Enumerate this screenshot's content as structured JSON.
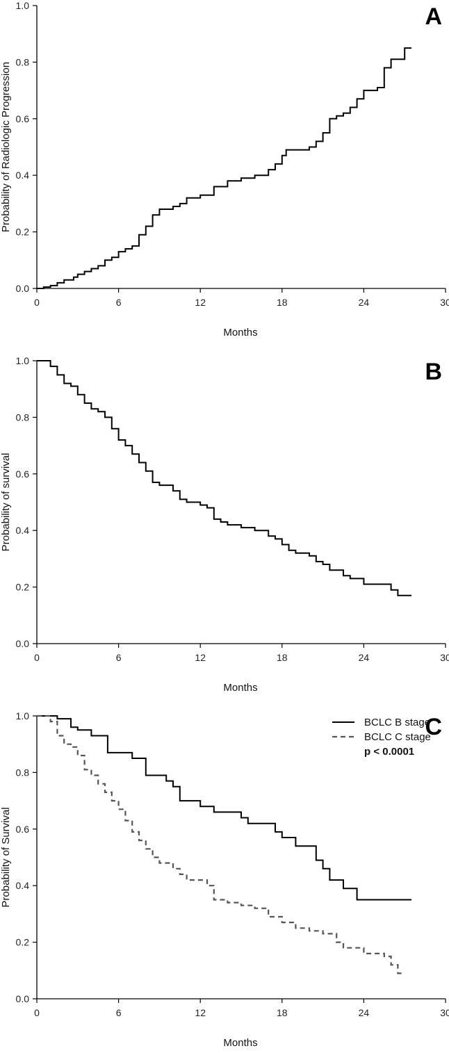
{
  "chart_data": [
    {
      "panel_label": "A",
      "type": "line",
      "step": true,
      "xlabel": "Months",
      "ylabel": "Probability of Radiologic Progression",
      "xlim": [
        0,
        30
      ],
      "ylim": [
        0,
        1
      ],
      "x_ticks": [
        "0",
        "6",
        "12",
        "18",
        "24",
        "30"
      ],
      "y_ticks": [
        "0.0",
        "0.2",
        "0.4",
        "0.6",
        "0.8",
        "1.0"
      ],
      "grid": false,
      "series": [
        {
          "color": "#000000",
          "dashed": false,
          "points": [
            [
              0,
              0
            ],
            [
              0.5,
              0.005
            ],
            [
              1.0,
              0.01
            ],
            [
              1.5,
              0.02
            ],
            [
              2.0,
              0.03
            ],
            [
              2.7,
              0.04
            ],
            [
              3.0,
              0.05
            ],
            [
              3.5,
              0.06
            ],
            [
              4.0,
              0.07
            ],
            [
              4.5,
              0.08
            ],
            [
              5.0,
              0.1
            ],
            [
              5.5,
              0.11
            ],
            [
              6.0,
              0.13
            ],
            [
              6.5,
              0.14
            ],
            [
              7.0,
              0.15
            ],
            [
              7.5,
              0.19
            ],
            [
              8.0,
              0.22
            ],
            [
              8.5,
              0.26
            ],
            [
              9.0,
              0.28
            ],
            [
              10.0,
              0.29
            ],
            [
              10.5,
              0.3
            ],
            [
              11.0,
              0.32
            ],
            [
              12.0,
              0.33
            ],
            [
              13.0,
              0.36
            ],
            [
              14.0,
              0.38
            ],
            [
              15.0,
              0.39
            ],
            [
              16.0,
              0.4
            ],
            [
              17.0,
              0.42
            ],
            [
              17.5,
              0.44
            ],
            [
              18.0,
              0.47
            ],
            [
              18.3,
              0.49
            ],
            [
              20.0,
              0.5
            ],
            [
              20.5,
              0.52
            ],
            [
              21.0,
              0.55
            ],
            [
              21.5,
              0.6
            ],
            [
              22.0,
              0.61
            ],
            [
              22.5,
              0.62
            ],
            [
              23.0,
              0.64
            ],
            [
              23.5,
              0.67
            ],
            [
              24.0,
              0.7
            ],
            [
              25.0,
              0.71
            ],
            [
              25.5,
              0.78
            ],
            [
              26.0,
              0.81
            ],
            [
              27.0,
              0.85
            ],
            [
              27.5,
              0.85
            ]
          ]
        }
      ]
    },
    {
      "panel_label": "B",
      "type": "line",
      "step": true,
      "xlabel": "Months",
      "ylabel": "Probability of survival",
      "xlim": [
        0,
        30
      ],
      "ylim": [
        0,
        1
      ],
      "x_ticks": [
        "0",
        "6",
        "12",
        "18",
        "24",
        "30"
      ],
      "y_ticks": [
        "0.0",
        "0.2",
        "0.4",
        "0.6",
        "0.8",
        "1.0"
      ],
      "grid": false,
      "series": [
        {
          "color": "#000000",
          "dashed": false,
          "points": [
            [
              0,
              1.0
            ],
            [
              1.0,
              0.98
            ],
            [
              1.5,
              0.95
            ],
            [
              2.0,
              0.92
            ],
            [
              2.5,
              0.91
            ],
            [
              3.0,
              0.88
            ],
            [
              3.5,
              0.85
            ],
            [
              4.0,
              0.83
            ],
            [
              4.5,
              0.82
            ],
            [
              5.0,
              0.8
            ],
            [
              5.5,
              0.76
            ],
            [
              6.0,
              0.72
            ],
            [
              6.5,
              0.7
            ],
            [
              7.0,
              0.67
            ],
            [
              7.5,
              0.64
            ],
            [
              8.0,
              0.61
            ],
            [
              8.5,
              0.57
            ],
            [
              9.0,
              0.56
            ],
            [
              10.0,
              0.54
            ],
            [
              10.5,
              0.51
            ],
            [
              11.0,
              0.5
            ],
            [
              12.0,
              0.49
            ],
            [
              12.5,
              0.48
            ],
            [
              13.0,
              0.44
            ],
            [
              13.5,
              0.43
            ],
            [
              14.0,
              0.42
            ],
            [
              15.0,
              0.41
            ],
            [
              16.0,
              0.4
            ],
            [
              17.0,
              0.38
            ],
            [
              17.5,
              0.37
            ],
            [
              18.0,
              0.35
            ],
            [
              18.5,
              0.33
            ],
            [
              19.0,
              0.32
            ],
            [
              20.0,
              0.31
            ],
            [
              20.5,
              0.29
            ],
            [
              21.0,
              0.28
            ],
            [
              21.5,
              0.26
            ],
            [
              22.5,
              0.24
            ],
            [
              23.0,
              0.23
            ],
            [
              24.0,
              0.21
            ],
            [
              25.0,
              0.21
            ],
            [
              26.0,
              0.19
            ],
            [
              26.5,
              0.17
            ],
            [
              27.5,
              0.17
            ]
          ]
        }
      ]
    },
    {
      "panel_label": "C",
      "type": "line",
      "step": true,
      "xlabel": "Months",
      "ylabel": "Probability of Survival",
      "xlim": [
        0,
        30
      ],
      "ylim": [
        0,
        1
      ],
      "x_ticks": [
        "0",
        "6",
        "12",
        "18",
        "24",
        "30"
      ],
      "y_ticks": [
        "0.0",
        "0.2",
        "0.4",
        "0.6",
        "0.8",
        "1.0"
      ],
      "grid": false,
      "legend_position": "top-right",
      "annotation": "p < 0.0001",
      "series": [
        {
          "name": "BCLC B stage",
          "color": "#000000",
          "dashed": false,
          "points": [
            [
              0,
              1.0
            ],
            [
              1.5,
              0.99
            ],
            [
              2.5,
              0.96
            ],
            [
              3.0,
              0.95
            ],
            [
              4.0,
              0.93
            ],
            [
              5.0,
              0.93
            ],
            [
              5.2,
              0.87
            ],
            [
              7.0,
              0.85
            ],
            [
              8.0,
              0.79
            ],
            [
              9.5,
              0.77
            ],
            [
              10.0,
              0.75
            ],
            [
              10.5,
              0.7
            ],
            [
              12.0,
              0.68
            ],
            [
              13.0,
              0.66
            ],
            [
              15.0,
              0.64
            ],
            [
              15.5,
              0.62
            ],
            [
              17.5,
              0.59
            ],
            [
              18.0,
              0.57
            ],
            [
              19.0,
              0.54
            ],
            [
              20.5,
              0.49
            ],
            [
              21.0,
              0.46
            ],
            [
              21.5,
              0.42
            ],
            [
              22.5,
              0.39
            ],
            [
              23.5,
              0.35
            ],
            [
              27.5,
              0.35
            ]
          ]
        },
        {
          "name": "BCLC C stage",
          "color": "#555555",
          "dashed": true,
          "points": [
            [
              0,
              1.0
            ],
            [
              1.0,
              0.98
            ],
            [
              1.5,
              0.93
            ],
            [
              2.0,
              0.9
            ],
            [
              2.5,
              0.89
            ],
            [
              3.0,
              0.86
            ],
            [
              3.5,
              0.81
            ],
            [
              4.0,
              0.79
            ],
            [
              4.5,
              0.76
            ],
            [
              5.0,
              0.73
            ],
            [
              5.5,
              0.7
            ],
            [
              6.0,
              0.67
            ],
            [
              6.5,
              0.63
            ],
            [
              7.0,
              0.59
            ],
            [
              7.5,
              0.56
            ],
            [
              8.0,
              0.53
            ],
            [
              8.5,
              0.5
            ],
            [
              9.0,
              0.48
            ],
            [
              10.0,
              0.46
            ],
            [
              10.5,
              0.44
            ],
            [
              11.0,
              0.42
            ],
            [
              12.5,
              0.4
            ],
            [
              13.0,
              0.35
            ],
            [
              14.0,
              0.34
            ],
            [
              15.0,
              0.33
            ],
            [
              16.0,
              0.32
            ],
            [
              17.0,
              0.29
            ],
            [
              18.0,
              0.27
            ],
            [
              19.0,
              0.25
            ],
            [
              20.0,
              0.24
            ],
            [
              21.0,
              0.23
            ],
            [
              22.0,
              0.2
            ],
            [
              22.5,
              0.18
            ],
            [
              24.0,
              0.16
            ],
            [
              25.5,
              0.15
            ],
            [
              26.0,
              0.12
            ],
            [
              26.5,
              0.09
            ],
            [
              27.0,
              0.09
            ]
          ]
        }
      ]
    }
  ]
}
